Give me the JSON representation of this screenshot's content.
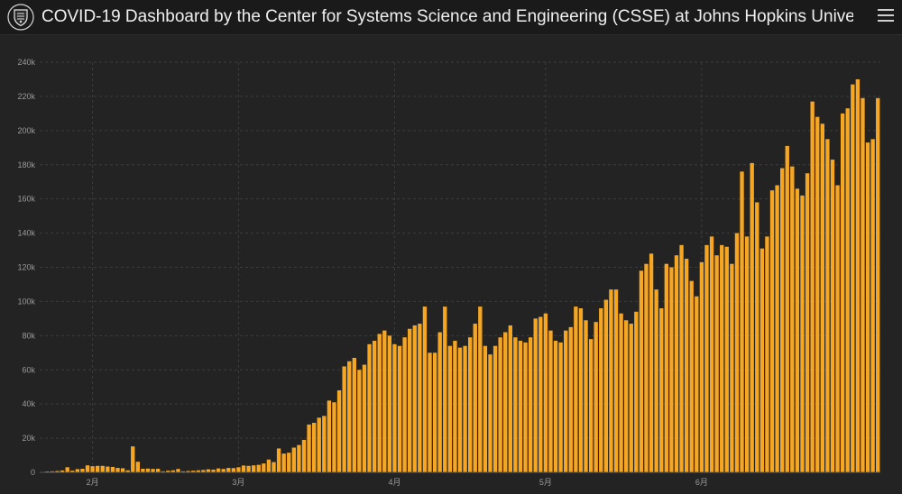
{
  "header": {
    "title": "COVID-19 Dashboard by the Center for Systems Science and Engineering (CSSE) at Johns Hopkins Unive…",
    "logo_icon": "jhu-shield-icon",
    "menu_icon": "hamburger-menu-icon"
  },
  "colors": {
    "bar": "#f5a623",
    "background": "#222222",
    "grid": "#3c3c3c"
  },
  "chart_data": {
    "type": "bar",
    "title": "",
    "xlabel": "",
    "ylabel": "",
    "ylim": [
      0,
      240000
    ],
    "yticks": [
      0,
      20000,
      40000,
      60000,
      80000,
      100000,
      120000,
      140000,
      160000,
      180000,
      200000,
      220000,
      240000
    ],
    "ytick_labels": [
      "0",
      "20k",
      "40k",
      "60k",
      "80k",
      "100k",
      "120k",
      "140k",
      "160k",
      "180k",
      "200k",
      "220k",
      "240k"
    ],
    "xtick_labels": [
      {
        "label": "2月",
        "index": 10
      },
      {
        "label": "3月",
        "index": 39
      },
      {
        "label": "4月",
        "index": 70
      },
      {
        "label": "5月",
        "index": 100
      },
      {
        "label": "6月",
        "index": 131
      }
    ],
    "grid": true,
    "series": [
      {
        "values": [
          0,
          500,
          600,
          800,
          1100,
          3000,
          1000,
          1900,
          2100,
          4100,
          3600,
          3800,
          3800,
          3400,
          3200,
          2600,
          2400,
          1200,
          15200,
          6200,
          2100,
          2200,
          2000,
          2100,
          600,
          1000,
          1200,
          2000,
          600,
          800,
          1000,
          1200,
          1400,
          1800,
          1600,
          2300,
          2000,
          2600,
          2500,
          3000,
          4000,
          3800,
          4100,
          4400,
          5200,
          7500,
          6000,
          14000,
          11000,
          11500,
          14500,
          16000,
          19000,
          28000,
          29000,
          32000,
          33000,
          42000,
          41000,
          48000,
          62000,
          65000,
          67000,
          60000,
          63000,
          75000,
          77000,
          81000,
          83000,
          80000,
          75000,
          74000,
          79000,
          84000,
          86000,
          87000,
          97000,
          70000,
          70000,
          82000,
          97000,
          74000,
          77000,
          73000,
          74000,
          79000,
          87000,
          97000,
          74000,
          69000,
          74000,
          79000,
          82000,
          86000,
          79000,
          77000,
          76000,
          79000,
          90000,
          91000,
          93000,
          83000,
          77000,
          76000,
          83000,
          85000,
          97000,
          96000,
          89000,
          78000,
          88000,
          96000,
          101000,
          107000,
          107000,
          93000,
          89000,
          87000,
          94000,
          118000,
          122000,
          128000,
          107000,
          96000,
          122000,
          120000,
          127000,
          133000,
          125000,
          112000,
          103000,
          123000,
          133000,
          138000,
          127000,
          133000,
          132000,
          122000,
          140000,
          176000,
          138000,
          181000,
          158000,
          131000,
          138000,
          165000,
          168000,
          178000,
          191000,
          179000,
          166000,
          162000,
          175000,
          217000,
          208000,
          204000,
          195000,
          183000,
          168000,
          210000,
          213000,
          227000,
          230000,
          219000,
          193000,
          195000,
          219000
        ]
      }
    ]
  }
}
